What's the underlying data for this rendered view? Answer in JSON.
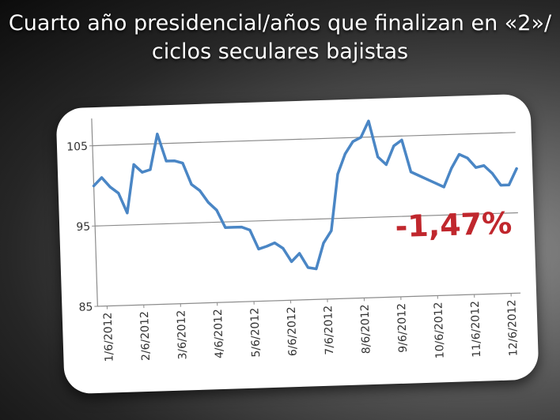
{
  "title": {
    "line1": "Cuarto año presidencial/años que finalizan en «2»/",
    "line2": "ciclos seculares bajistas"
  },
  "annotation": {
    "text": "-1,47%",
    "color": "#c0272d"
  },
  "colors": {
    "line": "#4a86c5",
    "grid": "#8c8c8c",
    "axis": "#8c8c8c"
  },
  "chart_data": {
    "type": "line",
    "title": "",
    "xlabel": "",
    "ylabel": "",
    "ylim": [
      85,
      108
    ],
    "yticks": [
      85,
      95,
      105
    ],
    "xticks": [
      "1/6/2012",
      "2/6/2012",
      "3/6/2012",
      "4/6/2012",
      "5/6/2012",
      "6/6/2012",
      "7/6/2012",
      "8/6/2012",
      "9/6/2012",
      "10/6/2012",
      "11/6/2012",
      "12/6/2012"
    ],
    "grid": true,
    "series": [
      {
        "values": [
          100.0,
          101.0,
          99.8,
          99.0,
          96.5,
          102.5,
          101.5,
          101.8,
          106.2,
          102.8,
          102.8,
          102.5,
          99.8,
          99.0,
          97.5,
          96.5,
          94.3,
          94.3,
          94.3,
          93.9,
          91.5,
          91.8,
          92.2,
          91.5,
          89.8,
          90.8,
          89.0,
          88.8,
          92.0,
          93.5,
          100.5,
          103.0,
          104.5,
          105.0,
          107.0,
          102.5,
          101.5,
          103.8,
          104.5,
          100.5,
          100.0,
          99.5,
          99.0,
          98.5,
          100.8,
          102.5,
          102.0,
          100.8,
          101.0,
          100.0,
          98.5,
          98.5,
          100.5
        ]
      }
    ]
  }
}
